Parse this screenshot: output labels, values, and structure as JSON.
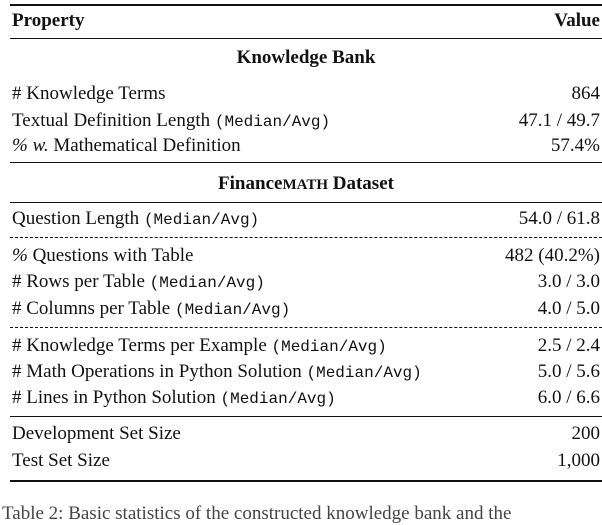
{
  "header": {
    "property": "Property",
    "value": "Value"
  },
  "sections": [
    {
      "title": "Knowledge Bank",
      "rows": [
        {
          "label": "# Knowledge Terms",
          "note": "",
          "value": "864"
        },
        {
          "label": "Textual Definition Length",
          "note": "(Median/Avg)",
          "value": "47.1 / 49.7"
        },
        {
          "label_italic": "% w.",
          "label": "Mathematical Definition",
          "note": "",
          "value": "57.4%"
        }
      ]
    },
    {
      "title_a": "Finance",
      "title_b": "Math",
      "title_c": "Dataset",
      "rows": [
        {
          "label": "Question Length",
          "note": "(Median/Avg)",
          "value": "54.0 / 61.8"
        },
        {
          "label_italic": "%",
          "label": "Questions with Table",
          "note": "",
          "value": "482 (40.2%)"
        },
        {
          "label": "# Rows per Table",
          "note": "(Median/Avg)",
          "value": "3.0 / 3.0"
        },
        {
          "label": "# Columns per Table",
          "note": "(Median/Avg)",
          "value": "4.0 / 5.0"
        },
        {
          "label": "# Knowledge Terms per Example",
          "note": "(Median/Avg)",
          "value": "2.5 / 2.4"
        },
        {
          "label": "# Math Operations in Python Solution",
          "note": "(Median/Avg)",
          "value": "5.0 / 5.6"
        },
        {
          "label": "# Lines in Python Solution",
          "note": "(Median/Avg)",
          "value": "6.0 / 6.6"
        },
        {
          "label": "Development Set Size",
          "note": "",
          "value": "200"
        },
        {
          "label": "Test Set Size",
          "note": "",
          "value": "1,000"
        }
      ]
    }
  ],
  "caption": "Table 2: Basic statistics of the constructed knowledge bank and the"
}
